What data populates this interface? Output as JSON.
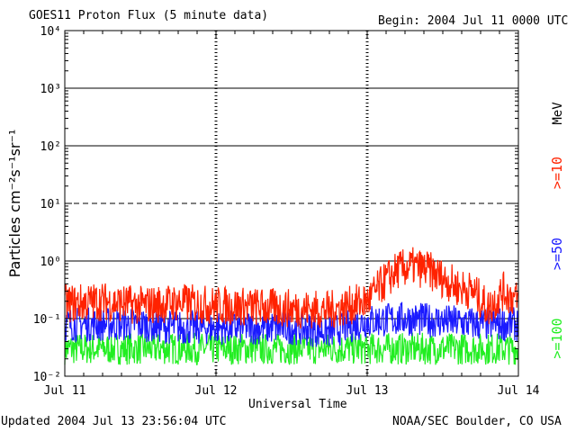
{
  "header": {
    "title": "GOES11 Proton Flux (5 minute data)",
    "begin": "Begin: 2004 Jul 11 0000 UTC"
  },
  "footer": {
    "updated": "Updated 2004 Jul 13 23:56:04 UTC",
    "credit": "NOAA/SEC Boulder, CO USA"
  },
  "chart_data": {
    "type": "line",
    "title": "GOES11 Proton Flux (5 minute data)",
    "xlabel": "Universal Time",
    "ylabel": "Particles cm⁻²s⁻¹sr⁻¹",
    "y_scale": "log",
    "ylim": [
      0.01,
      10000
    ],
    "y_ticks": [
      "10⁻²",
      "10⁻¹",
      "10⁰",
      "10¹",
      "10²",
      "10³",
      "10⁴"
    ],
    "x_ticks": [
      "Jul 11",
      "Jul 12",
      "Jul 13",
      "Jul 14"
    ],
    "xlim_days": [
      0,
      3
    ],
    "unit_label": "MeV",
    "threshold_lines": [
      {
        "value": 10,
        "style": "dashed"
      }
    ],
    "grid": "solid horizontal lines at each decade",
    "series": [
      {
        "name": ">=10",
        "color": "#ff2200",
        "x": [
          0,
          0.25,
          0.5,
          0.75,
          1.0,
          1.25,
          1.5,
          1.75,
          2.0,
          2.1,
          2.2,
          2.3,
          2.4,
          2.5,
          2.6,
          2.7,
          2.8,
          2.9,
          3.0
        ],
        "values": [
          0.18,
          0.2,
          0.17,
          0.19,
          0.17,
          0.16,
          0.15,
          0.14,
          0.2,
          0.4,
          0.7,
          0.8,
          0.7,
          0.5,
          0.35,
          0.3,
          0.15,
          0.3,
          0.2
        ]
      },
      {
        "name": ">=50",
        "color": "#1a1aff",
        "x": [
          0,
          0.25,
          0.5,
          0.75,
          1.0,
          1.25,
          1.5,
          1.75,
          2.0,
          2.25,
          2.5,
          2.75,
          3.0
        ],
        "values": [
          0.08,
          0.08,
          0.08,
          0.07,
          0.07,
          0.07,
          0.07,
          0.06,
          0.09,
          0.1,
          0.09,
          0.08,
          0.08
        ]
      },
      {
        "name": ">=100",
        "color": "#22ee22",
        "x": [
          0,
          0.25,
          0.5,
          0.75,
          1.0,
          1.25,
          1.5,
          1.75,
          2.0,
          2.25,
          2.5,
          2.75,
          3.0
        ],
        "values": [
          0.03,
          0.03,
          0.03,
          0.03,
          0.03,
          0.03,
          0.03,
          0.03,
          0.03,
          0.03,
          0.03,
          0.03,
          0.03
        ]
      }
    ]
  }
}
